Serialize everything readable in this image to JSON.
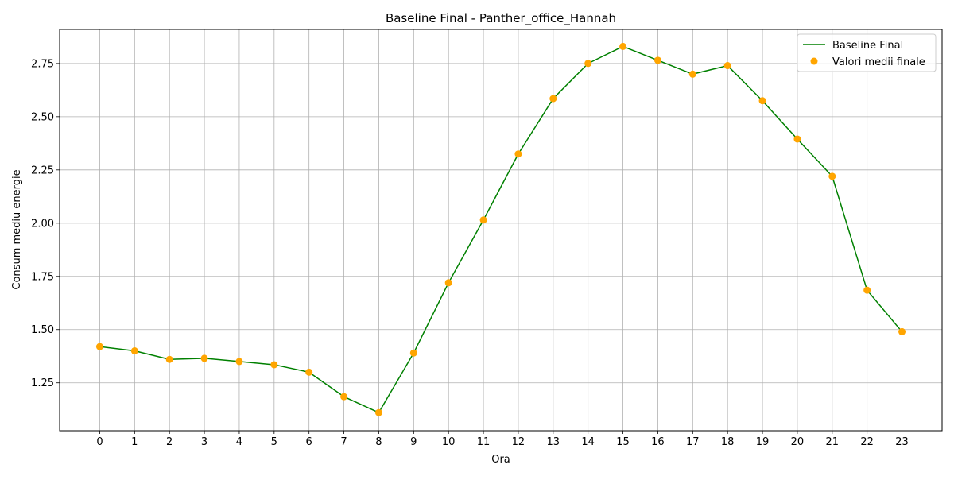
{
  "chart_data": {
    "type": "line",
    "title": "Baseline Final - Panther_office_Hannah",
    "xlabel": "Ora",
    "ylabel": "Consum mediu energie",
    "x": [
      0,
      1,
      2,
      3,
      4,
      5,
      6,
      7,
      8,
      9,
      10,
      11,
      12,
      13,
      14,
      15,
      16,
      17,
      18,
      19,
      20,
      21,
      22,
      23
    ],
    "xticks": [
      "0",
      "1",
      "2",
      "3",
      "4",
      "5",
      "6",
      "7",
      "8",
      "9",
      "10",
      "11",
      "12",
      "13",
      "14",
      "15",
      "16",
      "17",
      "18",
      "19",
      "20",
      "21",
      "22",
      "23"
    ],
    "yticks": [
      "1.25",
      "1.50",
      "1.75",
      "2.00",
      "2.25",
      "2.50",
      "2.75"
    ],
    "ytick_values": [
      1.25,
      1.5,
      1.75,
      2.0,
      2.25,
      2.5,
      2.75
    ],
    "xlim": [
      -1.15,
      24.15
    ],
    "ylim": [
      1.025,
      2.91
    ],
    "grid": true,
    "legend_position": "upper-right",
    "series": [
      {
        "name": "Baseline Final",
        "kind": "line",
        "color": "#008000",
        "values": [
          1.42,
          1.4,
          1.36,
          1.365,
          1.35,
          1.335,
          1.3,
          1.185,
          1.11,
          1.39,
          1.72,
          2.015,
          2.325,
          2.585,
          2.75,
          2.83,
          2.765,
          2.7,
          2.74,
          2.575,
          2.395,
          2.22,
          1.685,
          1.49
        ]
      },
      {
        "name": "Valori medii finale",
        "kind": "scatter",
        "color": "#FFA500",
        "values": [
          1.42,
          1.4,
          1.36,
          1.365,
          1.35,
          1.335,
          1.3,
          1.185,
          1.11,
          1.39,
          1.72,
          2.015,
          2.325,
          2.585,
          2.75,
          2.83,
          2.765,
          2.7,
          2.74,
          2.575,
          2.395,
          2.22,
          1.685,
          1.49
        ]
      }
    ]
  }
}
